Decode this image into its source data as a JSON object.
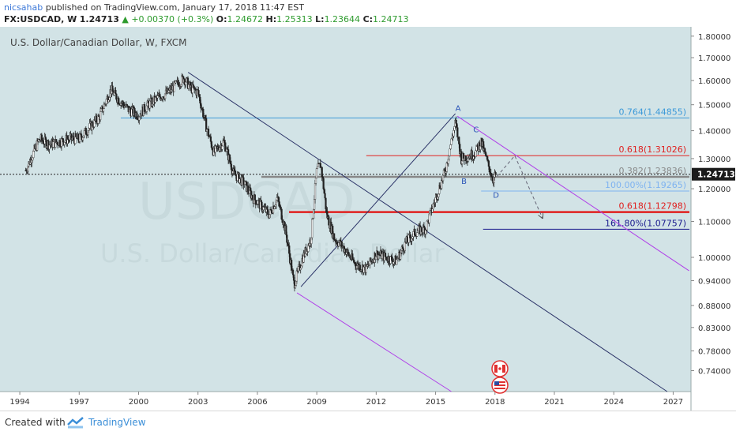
{
  "header": {
    "author": "nicsahab",
    "published": "published on TradingView.com, January 17, 2018 11:47 EST",
    "symbol": "FX:USDCAD, W",
    "price": "1.24713",
    "change": "+0.00370 (+0.3%)",
    "o_label": "O:",
    "o_value": "1.24672",
    "h_label": "H:",
    "h_value": "1.25313",
    "l_label": "L:",
    "l_value": "1.23644",
    "c_label": "C:",
    "c_value": "1.24713"
  },
  "colors": {
    "background": "#d2e3e6",
    "candle_up": "#ffffff",
    "candle_down": "#222222",
    "fib_red": "#e0201f",
    "fib_blue": "#3d9ad9",
    "fib_lightblue": "#7fb3f0",
    "fib_navy": "#1c1c8f",
    "channel_navy": "#2c3468",
    "channel_purple": "#b040e8"
  },
  "footer": {
    "created_with": "Created with",
    "brand": "TradingView"
  },
  "chart_data": {
    "type": "candlestick",
    "title": "U.S. Dollar/Canadian Dollar, W, FXCM",
    "watermark_symbol": "USDCAD",
    "watermark_name": "U.S. Dollar/Canadian Dollar",
    "xlim": [
      1993.0,
      2027.9
    ],
    "ylim": [
      0.7,
      1.845
    ],
    "y_scale": "log",
    "x_ticks": [
      1994,
      1997,
      2000,
      2003,
      2006,
      2009,
      2012,
      2015,
      2018,
      2021,
      2024,
      2027
    ],
    "x_tick_labels": [
      "1994",
      "1997",
      "2000",
      "2003",
      "2006",
      "2009",
      "2012",
      "2015",
      "2018",
      "2021",
      "2024",
      "2027"
    ],
    "y_ticks": [
      1.8,
      1.7,
      1.6,
      1.5,
      1.4,
      1.3,
      1.2,
      1.1,
      1.0,
      0.94,
      0.88,
      0.83,
      0.78,
      0.74
    ],
    "y_tick_labels": [
      "1.80000",
      "1.70000",
      "1.60000",
      "1.50000",
      "1.40000",
      "1.30000",
      "1.20000",
      "1.10000",
      "1.00000",
      "0.94000",
      "0.88000",
      "0.83000",
      "0.78000",
      "0.74000"
    ],
    "last_price": 1.24713,
    "last_price_label": "1.24713",
    "price_path": [
      [
        1994.3,
        1.26
      ],
      [
        1995.0,
        1.37
      ],
      [
        1995.5,
        1.35
      ],
      [
        1996.0,
        1.36
      ],
      [
        1996.5,
        1.37
      ],
      [
        1997.0,
        1.37
      ],
      [
        1998.0,
        1.45
      ],
      [
        1998.6,
        1.56
      ],
      [
        1999.0,
        1.52
      ],
      [
        1999.5,
        1.48
      ],
      [
        2000.0,
        1.46
      ],
      [
        2000.5,
        1.5
      ],
      [
        2001.0,
        1.53
      ],
      [
        2001.5,
        1.55
      ],
      [
        2002.0,
        1.59
      ],
      [
        2002.3,
        1.61
      ],
      [
        2002.6,
        1.57
      ],
      [
        2003.0,
        1.55
      ],
      [
        2003.4,
        1.42
      ],
      [
        2003.8,
        1.32
      ],
      [
        2004.3,
        1.36
      ],
      [
        2004.8,
        1.25
      ],
      [
        2005.3,
        1.22
      ],
      [
        2005.8,
        1.17
      ],
      [
        2006.3,
        1.14
      ],
      [
        2006.6,
        1.12
      ],
      [
        2007.0,
        1.17
      ],
      [
        2007.4,
        1.08
      ],
      [
        2007.85,
        0.93
      ],
      [
        2008.3,
        1.0
      ],
      [
        2008.7,
        1.05
      ],
      [
        2009.0,
        1.26
      ],
      [
        2009.2,
        1.28
      ],
      [
        2009.5,
        1.12
      ],
      [
        2009.9,
        1.05
      ],
      [
        2010.3,
        1.03
      ],
      [
        2010.7,
        1.0
      ],
      [
        2011.0,
        0.98
      ],
      [
        2011.5,
        0.97
      ],
      [
        2012.0,
        1.01
      ],
      [
        2012.5,
        1.0
      ],
      [
        2013.0,
        0.99
      ],
      [
        2013.5,
        1.04
      ],
      [
        2014.0,
        1.07
      ],
      [
        2014.5,
        1.08
      ],
      [
        2015.0,
        1.17
      ],
      [
        2015.5,
        1.26
      ],
      [
        2016.0,
        1.43
      ],
      [
        2016.3,
        1.3
      ],
      [
        2016.7,
        1.31
      ],
      [
        2017.0,
        1.32
      ],
      [
        2017.3,
        1.36
      ],
      [
        2017.6,
        1.29
      ],
      [
        2017.9,
        1.23
      ],
      [
        2018.05,
        1.24713
      ]
    ],
    "fib_levels": [
      {
        "label": "0.764(1.44855)",
        "value": 1.44855,
        "x_start": 1999.1,
        "color": "#3d9ad9",
        "width": 1
      },
      {
        "label": "0.618(1.31026)",
        "value": 1.31026,
        "x_start": 2011.5,
        "color": "#e0201f",
        "width": 1
      },
      {
        "label": "0.382(1.23836)",
        "value": 1.23836,
        "x_start": 2006.2,
        "color": "#888888",
        "width": 2.5
      },
      {
        "label": "100.00%(1.19265)",
        "value": 1.19265,
        "x_start": 2017.3,
        "color": "#7fb3f0",
        "width": 1
      },
      {
        "label": "0.618(1.12798)",
        "value": 1.12798,
        "x_start": 2007.6,
        "color": "#e0201f",
        "width": 2.5
      },
      {
        "label": "161.80%(1.07757)",
        "value": 1.07757,
        "x_start": 2017.4,
        "color": "#1c1c8f",
        "width": 1
      }
    ],
    "wave_labels": [
      {
        "text": "A",
        "x": 2016.0,
        "y": 1.475
      },
      {
        "text": "B",
        "x": 2016.3,
        "y": 1.215
      },
      {
        "text": "C",
        "x": 2016.9,
        "y": 1.395
      },
      {
        "text": "D",
        "x": 2017.9,
        "y": 1.172
      }
    ],
    "trend_lines": [
      {
        "from": [
          2002.5,
          1.635
        ],
        "to": [
          2026.7,
          0.7
        ],
        "color": "#2c3468"
      },
      {
        "from": [
          2008.2,
          0.925
        ],
        "to": [
          2016.0,
          1.465
        ],
        "color": "#2c3468"
      },
      {
        "from": [
          2008.0,
          0.91
        ],
        "to": [
          2015.8,
          0.7
        ],
        "color": "#b040e8"
      },
      {
        "from": [
          2016.1,
          1.455
        ],
        "to": [
          2027.8,
          0.965
        ],
        "color": "#b040e8"
      }
    ],
    "projection": [
      [
        2018.1,
        1.24
      ],
      [
        2019.0,
        1.31
      ],
      [
        2020.4,
        1.11
      ]
    ],
    "grid": false,
    "legend": "none"
  }
}
